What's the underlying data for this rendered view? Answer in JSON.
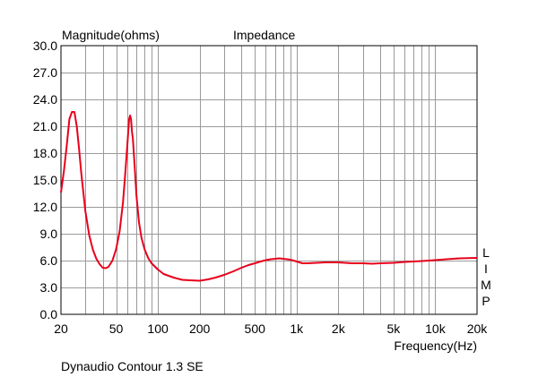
{
  "chart_data": {
    "type": "line",
    "title": "Impedance",
    "ylabel": "Magnitude(ohms)",
    "xlabel": "Frequency(Hz)",
    "caption": "Dynaudio Contour 1.3 SE",
    "side_label": [
      "L",
      "I",
      "M",
      "P"
    ],
    "x_scale": "log",
    "xlim": [
      20,
      20000
    ],
    "ylim": [
      0,
      30
    ],
    "grid": true,
    "x_ticks": [
      {
        "value": 20,
        "label": "20"
      },
      {
        "value": 50,
        "label": "50"
      },
      {
        "value": 100,
        "label": "100"
      },
      {
        "value": 200,
        "label": "200"
      },
      {
        "value": 500,
        "label": "500"
      },
      {
        "value": 1000,
        "label": "1k"
      },
      {
        "value": 2000,
        "label": "2k"
      },
      {
        "value": 5000,
        "label": "5k"
      },
      {
        "value": 10000,
        "label": "10k"
      },
      {
        "value": 20000,
        "label": "20k"
      }
    ],
    "y_ticks": [
      {
        "value": 0,
        "label": "0.0"
      },
      {
        "value": 3,
        "label": "3.0"
      },
      {
        "value": 6,
        "label": "6.0"
      },
      {
        "value": 9,
        "label": "9.0"
      },
      {
        "value": 12,
        "label": "12.0"
      },
      {
        "value": 15,
        "label": "15.0"
      },
      {
        "value": 18,
        "label": "18.0"
      },
      {
        "value": 21,
        "label": "21.0"
      },
      {
        "value": 24,
        "label": "24.0"
      },
      {
        "value": 27,
        "label": "27.0"
      },
      {
        "value": 30,
        "label": "30.0"
      }
    ],
    "colors": {
      "curve": "#e8001c",
      "grid": "#9a9a9a",
      "frame": "#000000"
    },
    "series": [
      {
        "x": [
          20,
          21,
          22,
          23,
          24,
          25,
          26,
          27,
          28,
          30,
          32,
          34,
          36,
          38,
          40,
          42,
          44,
          47,
          50,
          53,
          56,
          58,
          60,
          62,
          63,
          64,
          65,
          66,
          68,
          70,
          73,
          76,
          80,
          85,
          90,
          100,
          110,
          130,
          150,
          170,
          200,
          230,
          260,
          300,
          350,
          400,
          450,
          500,
          550,
          600,
          650,
          700,
          750,
          800,
          850,
          900,
          950,
          1000,
          1100,
          1200,
          1400,
          1600,
          1800,
          2000,
          2500,
          3000,
          3500,
          4000,
          5000,
          6000,
          7000,
          8000,
          10000,
          12000,
          15000,
          20000
        ],
        "y": [
          13.6,
          16.0,
          18.8,
          21.8,
          22.6,
          22.6,
          21.0,
          18.5,
          15.8,
          11.5,
          8.8,
          7.2,
          6.2,
          5.6,
          5.2,
          5.15,
          5.3,
          6.0,
          7.3,
          9.3,
          12.5,
          15.5,
          18.6,
          21.8,
          22.2,
          21.8,
          20.4,
          19.6,
          16.5,
          13.3,
          10.3,
          8.6,
          7.3,
          6.3,
          5.7,
          5.0,
          4.5,
          4.1,
          3.85,
          3.8,
          3.75,
          3.9,
          4.1,
          4.4,
          4.8,
          5.2,
          5.5,
          5.7,
          5.9,
          6.05,
          6.15,
          6.2,
          6.25,
          6.2,
          6.15,
          6.1,
          6.0,
          5.9,
          5.7,
          5.7,
          5.75,
          5.8,
          5.8,
          5.8,
          5.7,
          5.7,
          5.65,
          5.7,
          5.75,
          5.85,
          5.9,
          5.95,
          6.05,
          6.15,
          6.25,
          6.3
        ]
      }
    ]
  }
}
